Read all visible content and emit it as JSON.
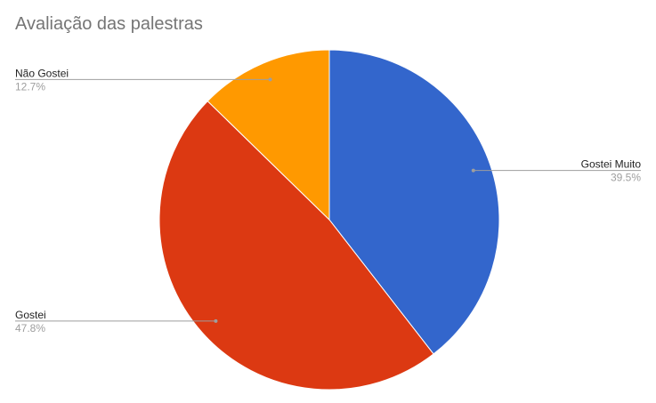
{
  "chart_data": {
    "type": "pie",
    "title": "Avaliação das palestras",
    "slices": [
      {
        "label": "Gostei Muito",
        "value": 39.5,
        "display": "39.5%",
        "color": "#3366cc"
      },
      {
        "label": "Gostei",
        "value": 47.8,
        "display": "47.8%",
        "color": "#dc3912"
      },
      {
        "label": "Não Gostei",
        "value": 12.7,
        "display": "12.7%",
        "color": "#ff9900"
      }
    ],
    "legend": "labeled"
  }
}
